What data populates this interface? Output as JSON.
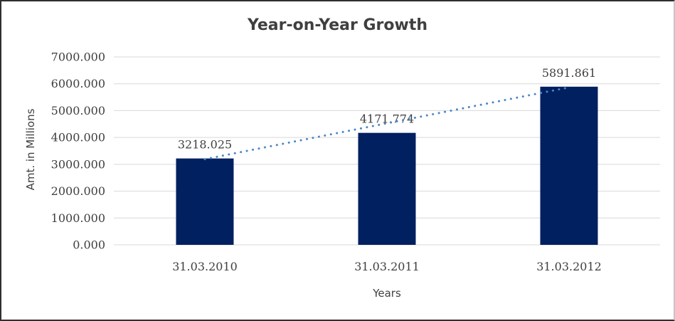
{
  "chart_data": {
    "type": "bar",
    "title": "Year-on-Year Growth",
    "xlabel": "Years",
    "ylabel": "Amt. in Millions",
    "categories": [
      "31.03.2010",
      "31.03.2011",
      "31.03.2012"
    ],
    "series": [
      {
        "name": "Amt. in Millions",
        "values": [
          3218.025,
          4171.774,
          5891.861
        ]
      }
    ],
    "data_labels": [
      "3218.025",
      "4171.774",
      "5891.861"
    ],
    "y_ticks": [
      "0.000",
      "1000.000",
      "2000.000",
      "3000.000",
      "4000.000",
      "5000.000",
      "6000.000",
      "7000.000"
    ],
    "ylim": [
      0,
      7000
    ],
    "y_tick_step": 1000,
    "grid": "horizontal",
    "legend": "none",
    "trendline": {
      "type": "linear",
      "style": "dotted"
    },
    "colors": {
      "bar": "#002060",
      "trendline": "#4a86c8",
      "gridline": "#d9d9d9",
      "text": "#3f3f3f"
    }
  }
}
